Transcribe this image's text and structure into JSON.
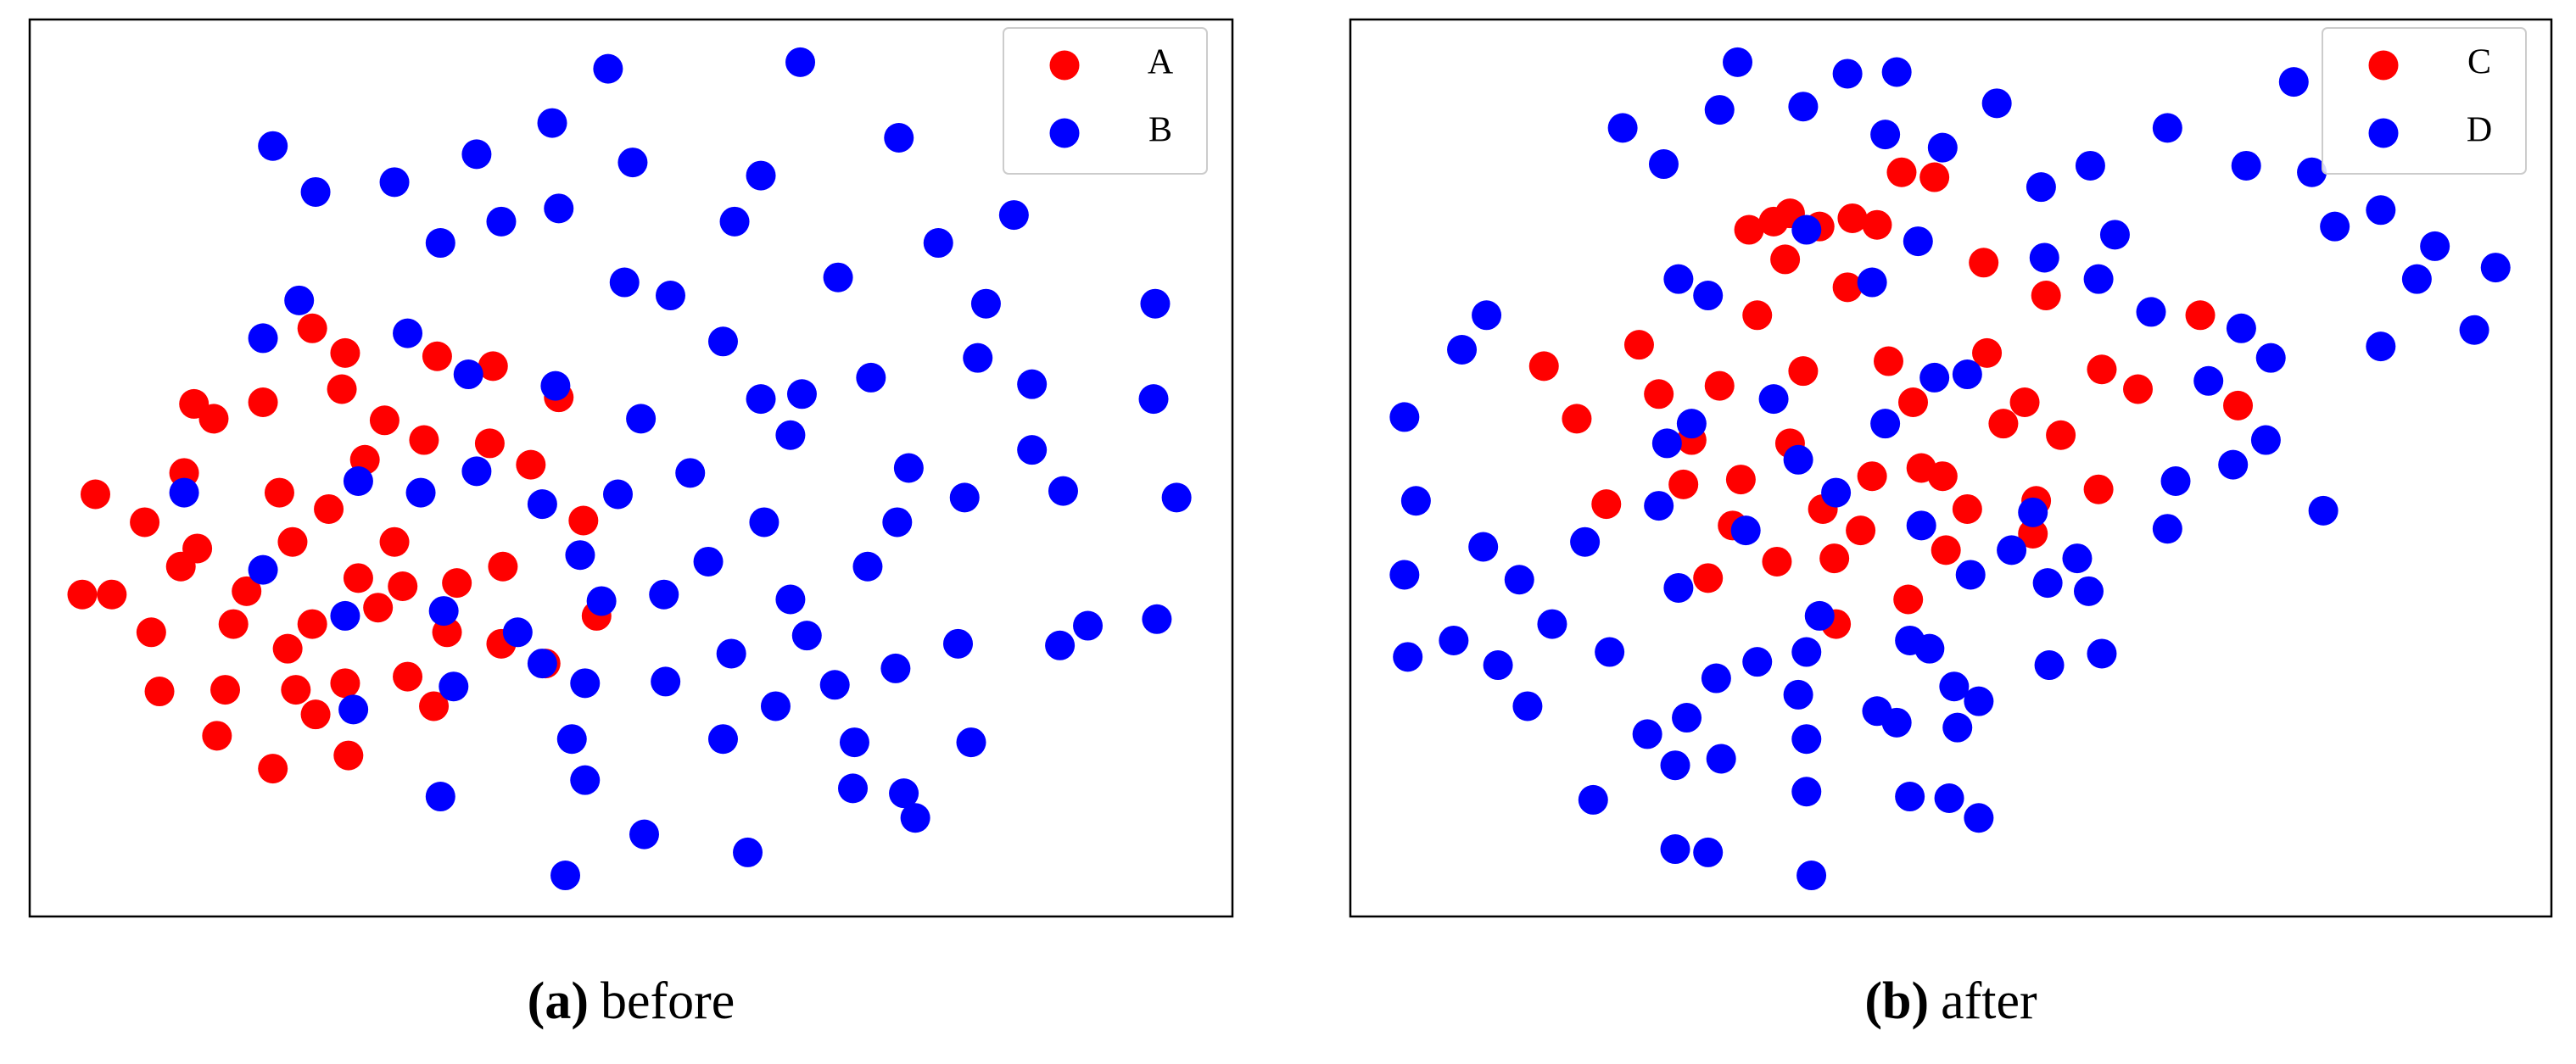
{
  "chart_data": [
    {
      "type": "scatter",
      "label": "(a)",
      "caption": "before",
      "xlim": [
        0,
        732
      ],
      "ylim": [
        0,
        546
      ],
      "legend": "upper right",
      "series": [
        {
          "name": "A",
          "color": "#ff0000",
          "x": [
            40,
            32,
            50,
            70,
            74,
            79,
            100,
            112,
            94,
            102,
            114,
            119,
            124,
            142,
            148,
            152,
            160,
            162,
            172,
            174,
            192,
            190,
            194,
            192,
            204,
            216,
            222,
            227,
            230,
            240,
            248,
            246,
            260,
            280,
            282,
            288,
            305,
            314,
            322,
            337,
            345,
            172,
            182,
            212,
            254,
            287,
            132,
            92,
            157,
            200
          ],
          "values": [
            257,
            196,
            196,
            240,
            173,
            137,
            312,
            303,
            270,
            224,
            110,
            138,
            178,
            313,
            90,
            258,
            228,
            138,
            358,
            123,
            343,
            321,
            98,
            142,
            278,
            302,
            228,
            201,
            146,
            290,
            341,
            128,
            203,
            288,
            335,
            213,
            275,
            154,
            316,
            241,
            183,
            178,
            248,
            188,
            173,
            166,
            198,
            213,
            163,
            206
          ]
        },
        {
          "name": "B",
          "color": "#0000ff",
          "x": [
            148,
            174,
            222,
            272,
            318,
            352,
            367,
            469,
            529,
            445,
            429,
            599,
            553,
            492,
            685,
            390,
            322,
            287,
            250,
            164,
            142,
            230,
            267,
            320,
            372,
            422,
            470,
            512,
            577,
            610,
            684,
            445,
            402,
            463,
            535,
            610,
            629,
            698,
            569,
            528,
            447,
            413,
            510,
            463,
            386,
            348,
            335,
            297,
            252,
            200,
            94,
            142,
            238,
            272,
            312,
            358,
            192,
            197,
            258,
            312,
            338,
            387,
            427,
            473,
            527,
            565,
            627,
            644,
            686,
            454,
            422,
            490,
            502,
            573,
            330,
            338,
            250,
            374,
            437,
            326,
            532,
            539,
            501,
            582,
            362
          ],
          "values": [
            469,
            441,
            447,
            464,
            483,
            516,
            459,
            520,
            474,
            451,
            423,
            427,
            410,
            389,
            373,
            378,
            431,
            423,
            410,
            375,
            352,
            355,
            330,
            323,
            303,
            350,
            318,
            328,
            340,
            324,
            315,
            315,
            270,
            293,
            273,
            284,
            259,
            255,
            255,
            240,
            240,
            216,
            213,
            193,
            196,
            192,
            220,
            173,
            186,
            265,
            258,
            211,
            258,
            271,
            251,
            257,
            183,
            126,
            140,
            154,
            142,
            143,
            160,
            171,
            151,
            166,
            165,
            177,
            181,
            128,
            108,
            141,
            106,
            106,
            108,
            83,
            73,
            50,
            39,
            25,
            75,
            60,
            78,
            373,
            386
          ]
        }
      ]
    },
    {
      "type": "scatter",
      "label": "(b)",
      "caption": "after",
      "xlim": [
        0,
        732
      ],
      "ylim": [
        0,
        546
      ],
      "legend": "upper right",
      "series": [
        {
          "name": "C",
          "color": "#ff0000",
          "x": [
            118,
            176,
            138,
            156,
            188,
            203,
            218,
            225,
            233,
            243,
            258,
            268,
            286,
            306,
            321,
            336,
            356,
            248,
            265,
            276,
            268,
            260,
            295,
            311,
            303,
            328,
            343,
            348,
            340,
            363,
            376,
            386,
            388,
            398,
            411,
            418,
            416,
            424,
            433,
            456,
            458,
            480,
            518,
            541,
            296,
            238,
            318,
            361,
            208,
            288
          ],
          "values": [
            335,
            348,
            303,
            251,
            318,
            263,
            206,
            323,
            238,
            418,
            423,
            428,
            420,
            425,
            421,
            453,
            450,
            366,
            400,
            332,
            288,
            216,
            218,
            235,
            383,
            338,
            313,
            273,
            193,
            223,
            248,
            398,
            343,
            300,
            313,
            253,
            233,
            378,
            293,
            260,
            333,
            321,
            366,
            311,
            178,
            266,
            268,
            268,
            290,
            248
          ]
        },
        {
          "name": "D",
          "color": "#0000ff",
          "x": [
            33,
            33,
            35,
            40,
            68,
            83,
            81,
            63,
            90,
            103,
            108,
            123,
            143,
            148,
            166,
            191,
            200,
            225,
            236,
            276,
            303,
            333,
            326,
            361,
            394,
            421,
            451,
            498,
            546,
            575,
            586,
            600,
            628,
            661,
            650,
            698,
            685,
            628,
            561,
            543,
            523,
            558,
            538,
            593,
            498,
            503,
            488,
            466,
            456,
            423,
            346,
            318,
            278,
            218,
            208,
            241,
            258,
            273,
            296,
            326,
            348,
            378,
            403,
            416,
            425,
            443,
            450,
            426,
            458,
            193,
            200,
            188,
            158,
            181,
            198,
            223,
            226,
            205,
            248,
            278,
            286,
            273,
            278,
            278,
            321,
            333,
            341,
            353,
            368,
            370,
            383,
            341,
            365,
            383,
            198,
            218,
            281,
            356,
            376
          ],
          "values": [
            304,
            208,
            158,
            253,
            345,
            366,
            225,
            168,
            153,
            205,
            128,
            178,
            228,
            71,
            480,
            458,
            388,
            491,
            520,
            493,
            513,
            514,
            476,
            468,
            495,
            444,
            457,
            480,
            457,
            508,
            453,
            420,
            430,
            408,
            388,
            395,
            357,
            347,
            340,
            358,
            326,
            290,
            275,
            247,
            236,
            265,
            368,
            415,
            388,
            401,
            411,
            386,
            418,
            378,
            300,
            235,
            315,
            278,
            258,
            300,
            238,
            208,
            223,
            246,
            203,
            218,
            198,
            153,
            160,
            288,
            200,
            250,
            161,
            111,
            92,
            145,
            96,
            121,
            155,
            161,
            183,
            135,
            108,
            76,
            125,
            118,
            168,
            163,
            140,
            115,
            131,
            73,
            72,
            60,
            41,
            39,
            25,
            328,
            330
          ]
        }
      ]
    }
  ]
}
